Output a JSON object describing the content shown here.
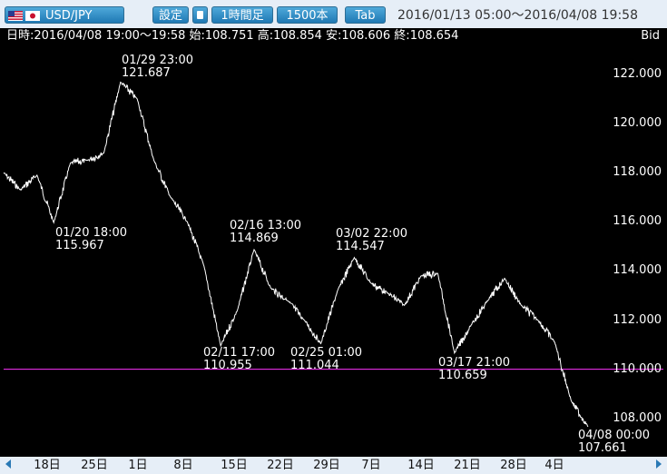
{
  "toolbar": {
    "pair_label": "USD/JPY",
    "settings_label": "設定",
    "interval_label": "1時間足",
    "bars_label": "1500本",
    "tab_label": "Tab",
    "period_text": "2016/01/13 05:00～2016/04/08 19:58"
  },
  "info": {
    "text": "日時:2016/04/08 19:00～19:58 始:108.751 高:108.854 安:108.606 終:108.654",
    "bid_label": "Bid"
  },
  "colors": {
    "background": "#000000",
    "price_line": "#ffffff",
    "reference_line": "#ff33ff",
    "button": "#2b86c4"
  },
  "chart_data": {
    "type": "line",
    "ylim": [
      107,
      123
    ],
    "y_ticks": [
      "122.000",
      "120.000",
      "118.000",
      "116.000",
      "114.000",
      "112.000",
      "110.000",
      "108.000"
    ],
    "x_ticks": [
      "18日",
      "25日",
      "1日",
      "8日",
      "15日",
      "22日",
      "29日",
      "7日",
      "14日",
      "21日",
      "28日",
      "4日"
    ],
    "reference_line": 110.0,
    "annotations": [
      {
        "date": "01/29 23:00",
        "price": "121.687"
      },
      {
        "date": "01/20 18:00",
        "price": "115.967"
      },
      {
        "date": "02/16 13:00",
        "price": "114.869"
      },
      {
        "date": "03/02 22:00",
        "price": "114.547"
      },
      {
        "date": "02/11 17:00",
        "price": "110.955"
      },
      {
        "date": "02/25 01:00",
        "price": "111.044"
      },
      {
        "date": "03/17 21:00",
        "price": "110.659"
      },
      {
        "date": "04/08 00:00",
        "price": "107.661"
      }
    ],
    "series": [
      {
        "x": [
          "01/13",
          "01/15",
          "01/18",
          "01/20",
          "01/22",
          "01/25",
          "01/27",
          "01/29",
          "02/01",
          "02/03",
          "02/05",
          "02/08",
          "02/09",
          "02/11",
          "02/12",
          "02/16",
          "02/18",
          "02/22",
          "02/24",
          "02/25",
          "02/28",
          "03/02",
          "03/04",
          "03/07",
          "03/09",
          "03/11",
          "03/14",
          "03/17",
          "03/21",
          "03/24",
          "03/28",
          "03/30",
          "04/01",
          "04/04",
          "04/06",
          "04/08"
        ],
        "values": [
          118.0,
          117.3,
          117.9,
          115.967,
          118.4,
          118.5,
          118.8,
          121.687,
          121.0,
          118.5,
          117.0,
          116.0,
          114.2,
          110.955,
          112.4,
          114.869,
          113.3,
          112.8,
          112.0,
          111.044,
          113.2,
          114.547,
          113.5,
          113.1,
          112.6,
          113.8,
          113.9,
          110.659,
          111.8,
          112.8,
          113.7,
          112.6,
          112.0,
          111.1,
          108.7,
          107.661
        ]
      }
    ]
  }
}
